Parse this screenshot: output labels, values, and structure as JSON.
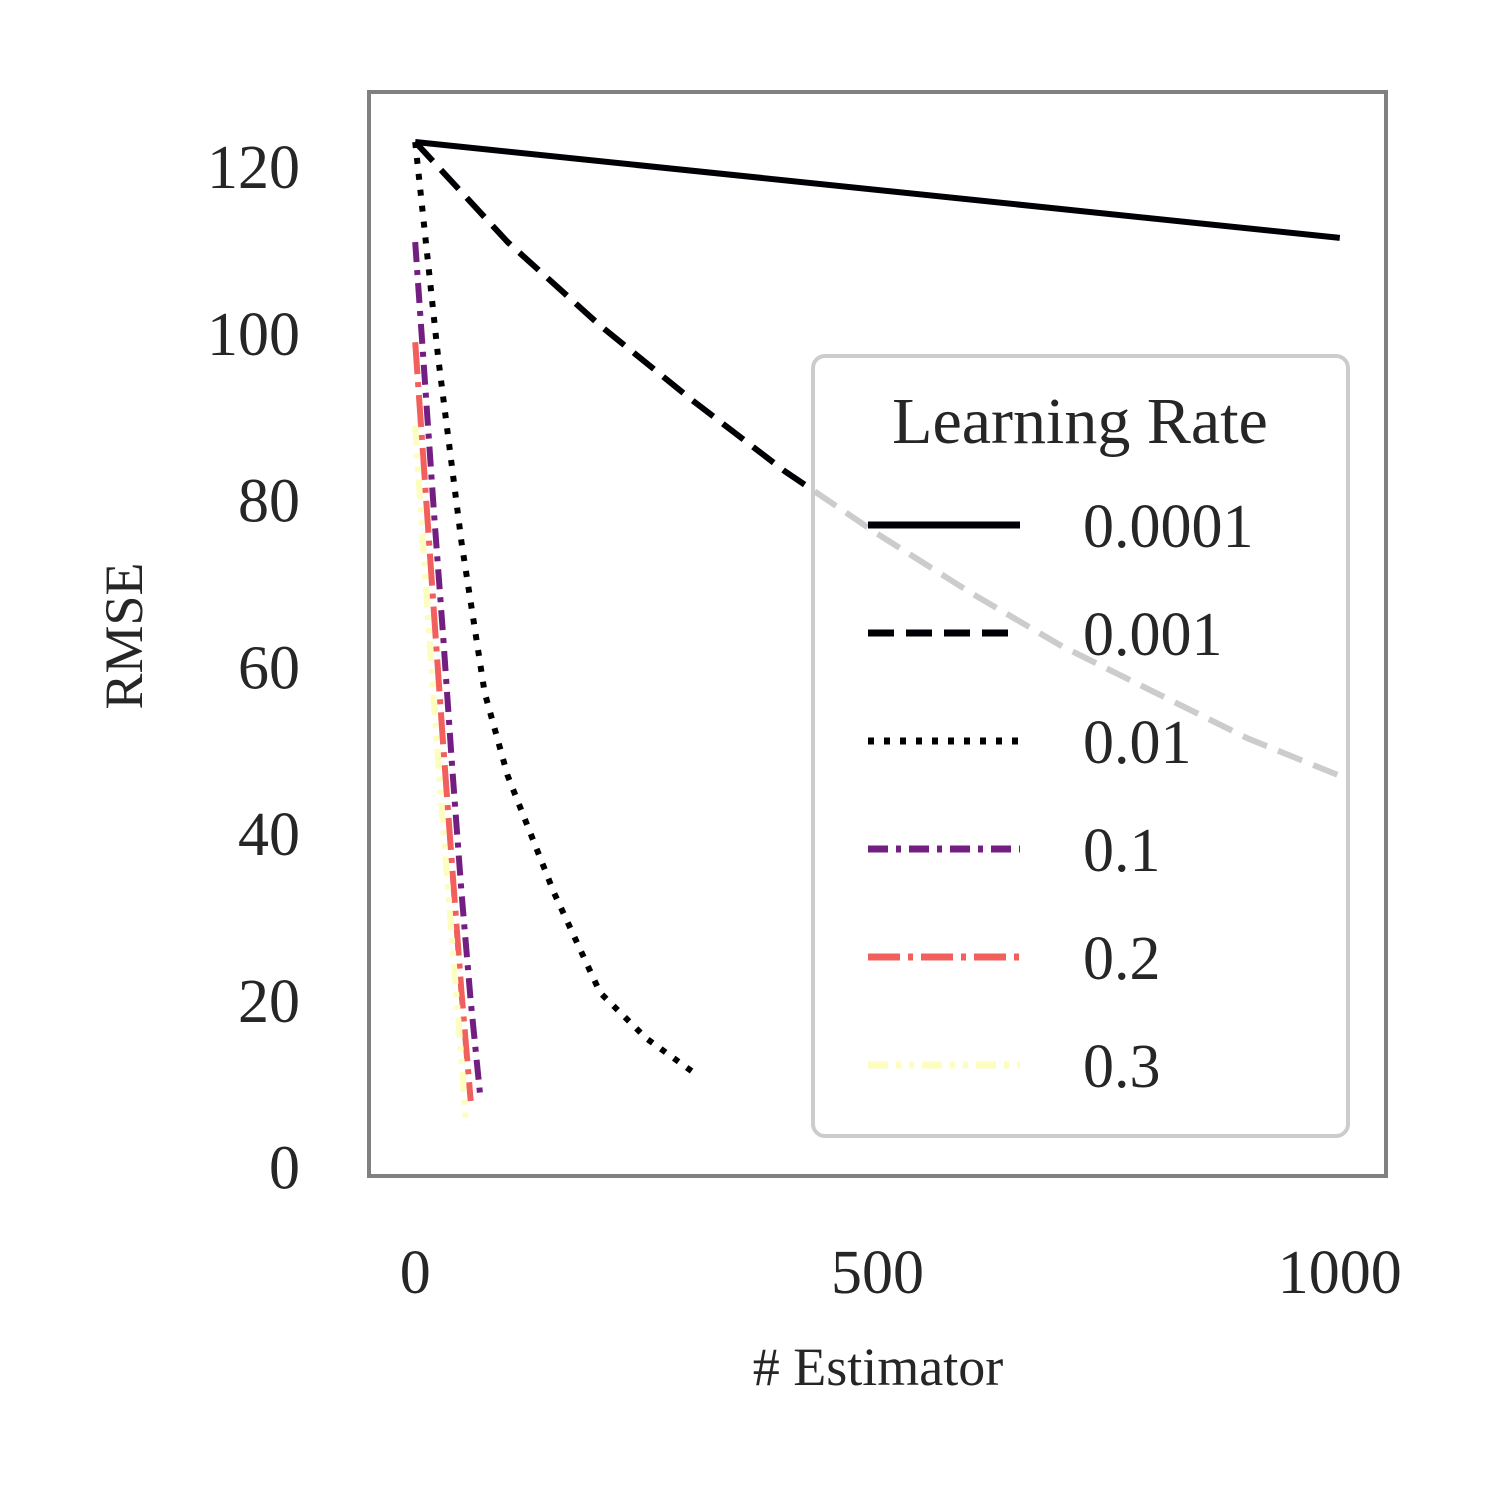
{
  "chart_data": {
    "type": "line",
    "xlabel": "# Estimator",
    "ylabel": "RMSE",
    "xlim": [
      -50,
      1050
    ],
    "ylim": [
      -1,
      129
    ],
    "xticks": [
      0,
      500,
      1000
    ],
    "yticks": [
      0,
      20,
      40,
      60,
      80,
      100,
      120
    ],
    "grid": false,
    "legend": {
      "title": "Learning Rate",
      "placement": "right"
    },
    "series": [
      {
        "name": "0.0001",
        "color": "#000004",
        "dash": "solid",
        "x": [
          0,
          1000
        ],
        "y": [
          123,
          111.5
        ]
      },
      {
        "name": "0.001",
        "color": "#000004",
        "dash": "dashed",
        "x": [
          0,
          100,
          200,
          300,
          400,
          500,
          600,
          700,
          800,
          900,
          1000
        ],
        "y": [
          123,
          111,
          101,
          92,
          83.5,
          76,
          69,
          62.5,
          57,
          51.5,
          47
        ]
      },
      {
        "name": "0.01",
        "color": "#000004",
        "dash": "dotted",
        "x": [
          0,
          25,
          50,
          75,
          100,
          150,
          200,
          250,
          300
        ],
        "y": [
          123,
          97,
          75,
          57,
          47,
          33,
          21,
          15.5,
          11.5
        ]
      },
      {
        "name": "0.1",
        "color": "#721f81",
        "dash": "dashdot",
        "x": [
          0,
          10,
          20,
          30,
          40,
          50,
          60,
          70
        ],
        "y": [
          111,
          95,
          79,
          64,
          48,
          33,
          20,
          9
        ]
      },
      {
        "name": "0.2",
        "color": "#f1605d",
        "dash": "longdashdot",
        "x": [
          0,
          10,
          20,
          30,
          40,
          50,
          60
        ],
        "y": [
          99,
          83,
          67,
          51,
          36,
          21,
          8
        ]
      },
      {
        "name": "0.3",
        "color": "#fcfdbf",
        "dash": "dashdotdot",
        "x": [
          0,
          10,
          20,
          30,
          40,
          50,
          55
        ],
        "y": [
          89,
          72,
          56,
          41,
          27,
          13,
          5
        ]
      }
    ]
  }
}
